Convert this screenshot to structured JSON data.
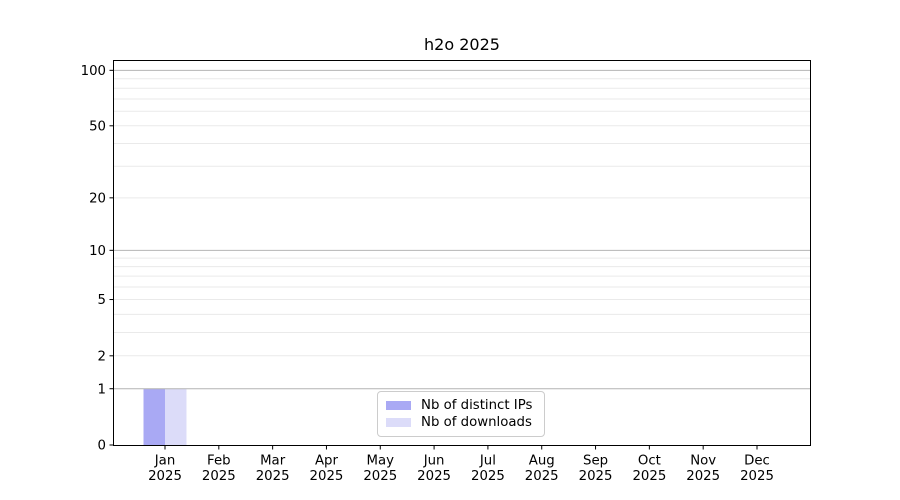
{
  "chart_data": {
    "type": "bar",
    "title": "h2o 2025",
    "categories": [
      "Jan 2025",
      "Feb 2025",
      "Mar 2025",
      "Apr 2025",
      "May 2025",
      "Jun 2025",
      "Jul 2025",
      "Aug 2025",
      "Sep 2025",
      "Oct 2025",
      "Nov 2025",
      "Dec 2025"
    ],
    "months": [
      "Jan",
      "Feb",
      "Mar",
      "Apr",
      "May",
      "Jun",
      "Jul",
      "Aug",
      "Sep",
      "Oct",
      "Nov",
      "Dec"
    ],
    "year_label": "2025",
    "series": [
      {
        "name": "Nb of distinct IPs",
        "color": "#a9a9f4",
        "values": [
          1,
          0,
          0,
          0,
          0,
          0,
          0,
          0,
          0,
          0,
          0,
          0
        ]
      },
      {
        "name": "Nb of downloads",
        "color": "#dcdcf9",
        "values": [
          1,
          0,
          0,
          0,
          0,
          0,
          0,
          0,
          0,
          0,
          0,
          0
        ]
      }
    ],
    "yscale": "log1p",
    "ylim": [
      0,
      113
    ],
    "ytick_labels": [
      100,
      50,
      20,
      10,
      5,
      2,
      1,
      0
    ],
    "grid_major_values": [
      1,
      10,
      100
    ],
    "grid_minor_values": [
      2,
      3,
      4,
      5,
      6,
      7,
      8,
      9,
      20,
      30,
      40,
      50,
      60,
      70,
      80,
      90
    ],
    "grid": "on",
    "legend_position": "lower center",
    "colors": {
      "grid_major": "#b4b4b4",
      "grid_minor": "#eaeaea",
      "axis": "#000000",
      "text": "#000000",
      "legend_border": "#cccccc"
    }
  }
}
